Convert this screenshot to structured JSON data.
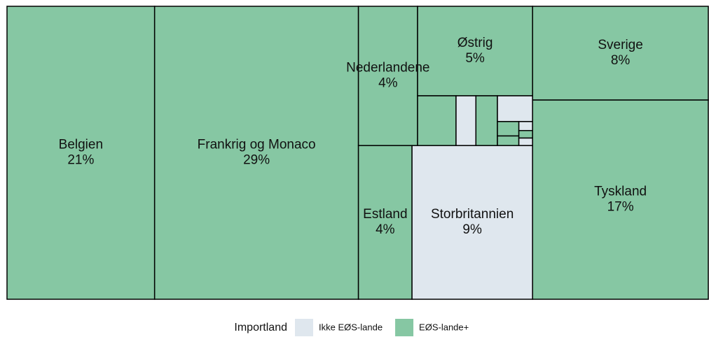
{
  "chart_data": {
    "type": "treemap",
    "legend_title": "Importland",
    "groups": [
      {
        "name": "Ikke EØS-lande",
        "color": "#dfe7ee"
      },
      {
        "name": "EØS-lande+",
        "color": "#86c7a3"
      }
    ],
    "categories": [
      "Belgien",
      "Frankrig og Monaco",
      "Nederlandene",
      "Østrig",
      null,
      null,
      null,
      null,
      null,
      null,
      null,
      null,
      null,
      "Estland",
      "Storbritannien",
      "Sverige",
      "Tyskland"
    ],
    "values": [
      21,
      29,
      4,
      5,
      0.93,
      0.48,
      0.52,
      0.44,
      0.15,
      0.1,
      0.06,
      0.05,
      0.05,
      4,
      9,
      8,
      17
    ],
    "value_labels": [
      "21%",
      "29%",
      "4%",
      "5%",
      null,
      null,
      null,
      null,
      null,
      null,
      null,
      null,
      null,
      "4%",
      "9%",
      "8%",
      "17%"
    ],
    "group": [
      1,
      1,
      1,
      1,
      1,
      0,
      1,
      0,
      1,
      1,
      0,
      1,
      0,
      1,
      0,
      1,
      1
    ]
  }
}
